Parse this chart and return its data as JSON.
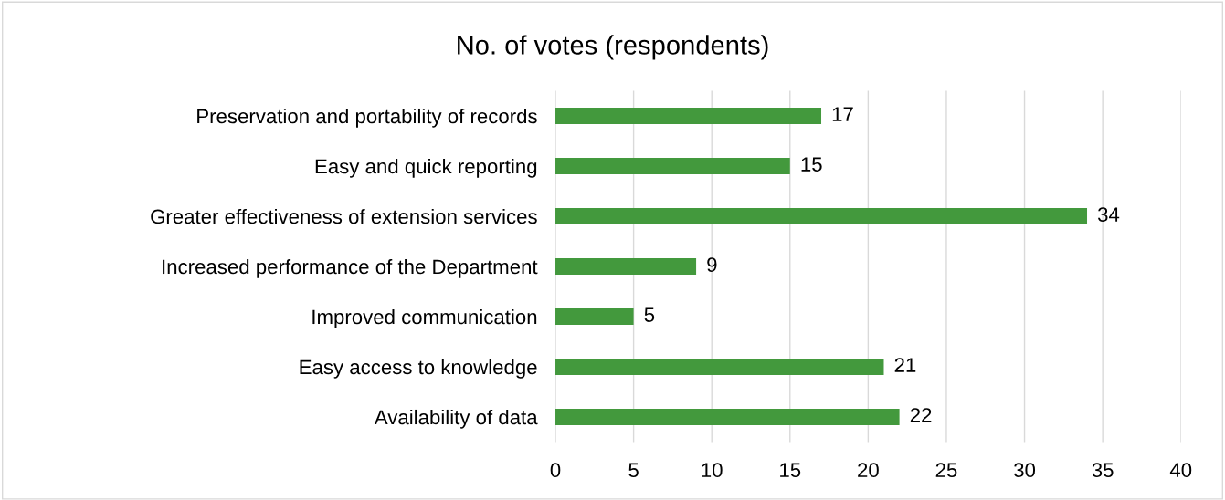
{
  "chart_data": {
    "type": "bar",
    "orientation": "horizontal",
    "title": "No. of votes (respondents)",
    "categories": [
      "Preservation and portability of records",
      "Easy and quick reporting",
      "Greater effectiveness of extension services",
      "Increased performance of the Department",
      "Improved communication",
      "Easy access to knowledge",
      "Availability of data"
    ],
    "values": [
      17,
      15,
      34,
      9,
      5,
      21,
      22
    ],
    "color": "#43993d",
    "xlim": [
      0,
      40
    ],
    "xticks": [
      0,
      5,
      10,
      15,
      20,
      25,
      30,
      35,
      40
    ],
    "grid": "x",
    "data_labels": true,
    "legend": false
  }
}
